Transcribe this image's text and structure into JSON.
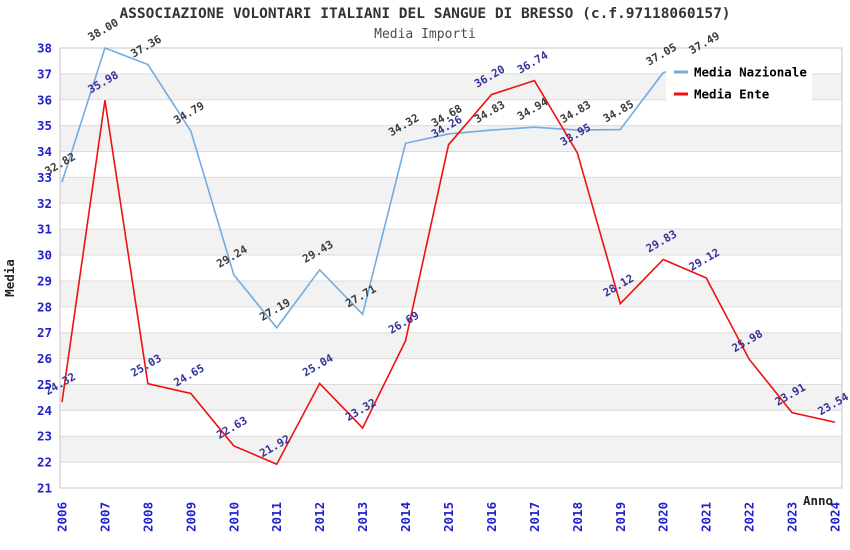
{
  "chart_data": {
    "type": "line",
    "title": "ASSOCIAZIONE VOLONTARI ITALIANI DEL SANGUE DI BRESSO (c.f.97118060157)",
    "subtitle": "Media Importi",
    "xlabel": "Anno",
    "ylabel": "Media",
    "ylim": [
      21,
      38
    ],
    "y_tick_step": 1,
    "x": [
      2006,
      2007,
      2008,
      2009,
      2010,
      2011,
      2012,
      2013,
      2014,
      2015,
      2016,
      2017,
      2018,
      2019,
      2020,
      2021,
      2022,
      2023,
      2024
    ],
    "series": [
      {
        "name": "Media Nazionale",
        "color": "#72ace0",
        "label_color": "#3c3c3c",
        "values": [
          32.82,
          38.0,
          37.36,
          34.79,
          29.24,
          27.19,
          29.43,
          27.71,
          34.32,
          34.68,
          34.83,
          34.94,
          34.83,
          34.85,
          37.05,
          37.49,
          null,
          null,
          null
        ]
      },
      {
        "name": "Media Ente",
        "color": "#ee1111",
        "label_color": "#333399",
        "values": [
          24.32,
          35.98,
          25.03,
          24.65,
          22.63,
          21.92,
          25.04,
          23.32,
          26.69,
          34.26,
          36.2,
          36.74,
          33.95,
          28.12,
          29.83,
          29.12,
          25.98,
          23.91,
          23.54
        ]
      }
    ],
    "legend": {
      "position": "top-right",
      "items": [
        "Media Nazionale",
        "Media Ente"
      ]
    },
    "grid": true,
    "band_color": "#f2f2f2",
    "gridline_color": "#dcdcdc",
    "plot_border_color": "#c4c4c4",
    "axis_tick_color": "#2222cc",
    "axis_title_color": "#222222"
  }
}
